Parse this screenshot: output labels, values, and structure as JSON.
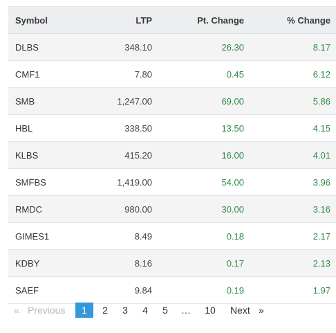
{
  "table": {
    "headers": {
      "symbol": "Symbol",
      "ltp": "LTP",
      "pt_change": "Pt. Change",
      "pct_change": "% Change"
    },
    "rows": [
      {
        "symbol": "DLBS",
        "ltp": "348.10",
        "pt_change": "26.30",
        "pct_change": "8.17"
      },
      {
        "symbol": "CMF1",
        "ltp": "7.80",
        "pt_change": "0.45",
        "pct_change": "6.12"
      },
      {
        "symbol": "SMB",
        "ltp": "1,247.00",
        "pt_change": "69.00",
        "pct_change": "5.86"
      },
      {
        "symbol": "HBL",
        "ltp": "338.50",
        "pt_change": "13.50",
        "pct_change": "4.15"
      },
      {
        "symbol": "KLBS",
        "ltp": "415.20",
        "pt_change": "16.00",
        "pct_change": "4.01"
      },
      {
        "symbol": "SMFBS",
        "ltp": "1,419.00",
        "pt_change": "54.00",
        "pct_change": "3.96"
      },
      {
        "symbol": "RMDC",
        "ltp": "980.00",
        "pt_change": "30.00",
        "pct_change": "3.16"
      },
      {
        "symbol": "GIMES1",
        "ltp": "8.49",
        "pt_change": "0.18",
        "pct_change": "2.17"
      },
      {
        "symbol": "KDBY",
        "ltp": "8.16",
        "pt_change": "0.17",
        "pct_change": "2.13"
      },
      {
        "symbol": "SAEF",
        "ltp": "9.84",
        "pt_change": "0.19",
        "pct_change": "1.97"
      }
    ]
  },
  "pagination": {
    "prev_arrow": "«",
    "previous": "Previous",
    "pages": [
      "1",
      "2",
      "3",
      "4",
      "5"
    ],
    "ellipsis": "…",
    "last_page": "10",
    "next": "Next",
    "next_arrow": "»",
    "current_page": "1"
  },
  "colors": {
    "positive_change": "#2e8b45",
    "active_page": "#3498db",
    "disabled_link": "#b4b8bc",
    "header_bg": "#eceef0",
    "stripe_bg": "#f4f4f4"
  }
}
